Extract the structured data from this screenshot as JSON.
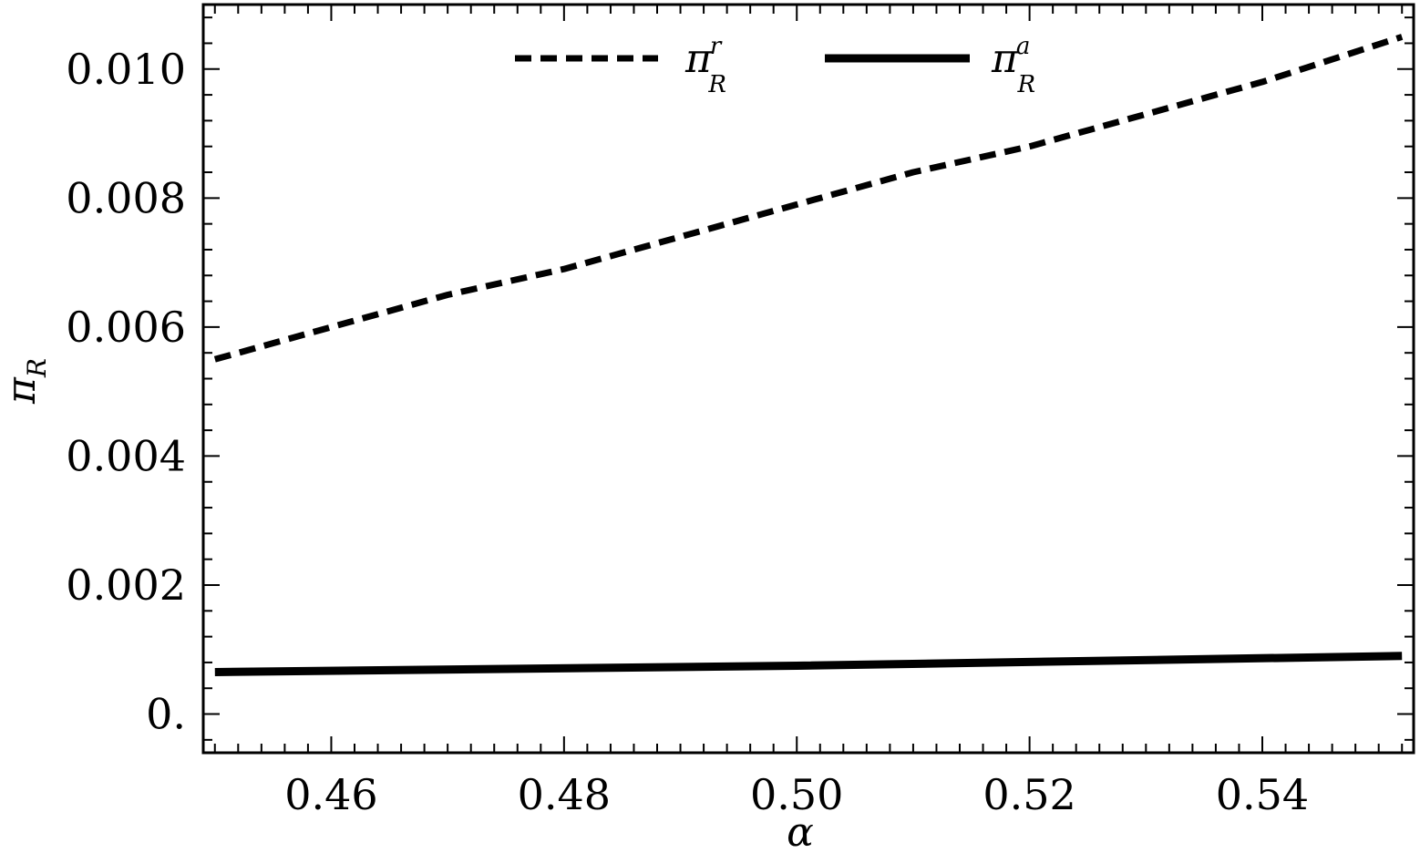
{
  "chart_data": {
    "type": "line",
    "xlabel": "α",
    "ylabel": {
      "main": "π",
      "sub": "R"
    },
    "xlim": [
      0.449,
      0.553
    ],
    "ylim": [
      -0.0006,
      0.011
    ],
    "x_ticks": [
      0.46,
      0.48,
      0.5,
      0.52,
      0.54
    ],
    "x_tick_labels": [
      "0.46",
      "0.48",
      "0.50",
      "0.52",
      "0.54"
    ],
    "y_ticks": [
      0,
      0.002,
      0.004,
      0.006,
      0.008,
      0.01
    ],
    "y_tick_labels": [
      "0.",
      "0.002",
      "0.004",
      "0.006",
      "0.008",
      "0.010"
    ],
    "legend_position": "top-center",
    "grid": false,
    "series": [
      {
        "name": "π_R^r",
        "legend": {
          "main": "π",
          "sub": "R",
          "sup": "r"
        },
        "style": "dashed",
        "color": "#000000",
        "x": [
          0.45,
          0.46,
          0.47,
          0.48,
          0.49,
          0.5,
          0.51,
          0.52,
          0.53,
          0.54,
          0.552
        ],
        "y": [
          0.0055,
          0.006,
          0.0065,
          0.0069,
          0.0074,
          0.0079,
          0.0084,
          0.0088,
          0.0093,
          0.0098,
          0.0105
        ]
      },
      {
        "name": "π_R^a",
        "legend": {
          "main": "π",
          "sub": "R",
          "sup": "a"
        },
        "style": "solid",
        "color": "#000000",
        "x": [
          0.45,
          0.5,
          0.552
        ],
        "y": [
          0.00065,
          0.00075,
          0.0009
        ]
      }
    ]
  }
}
